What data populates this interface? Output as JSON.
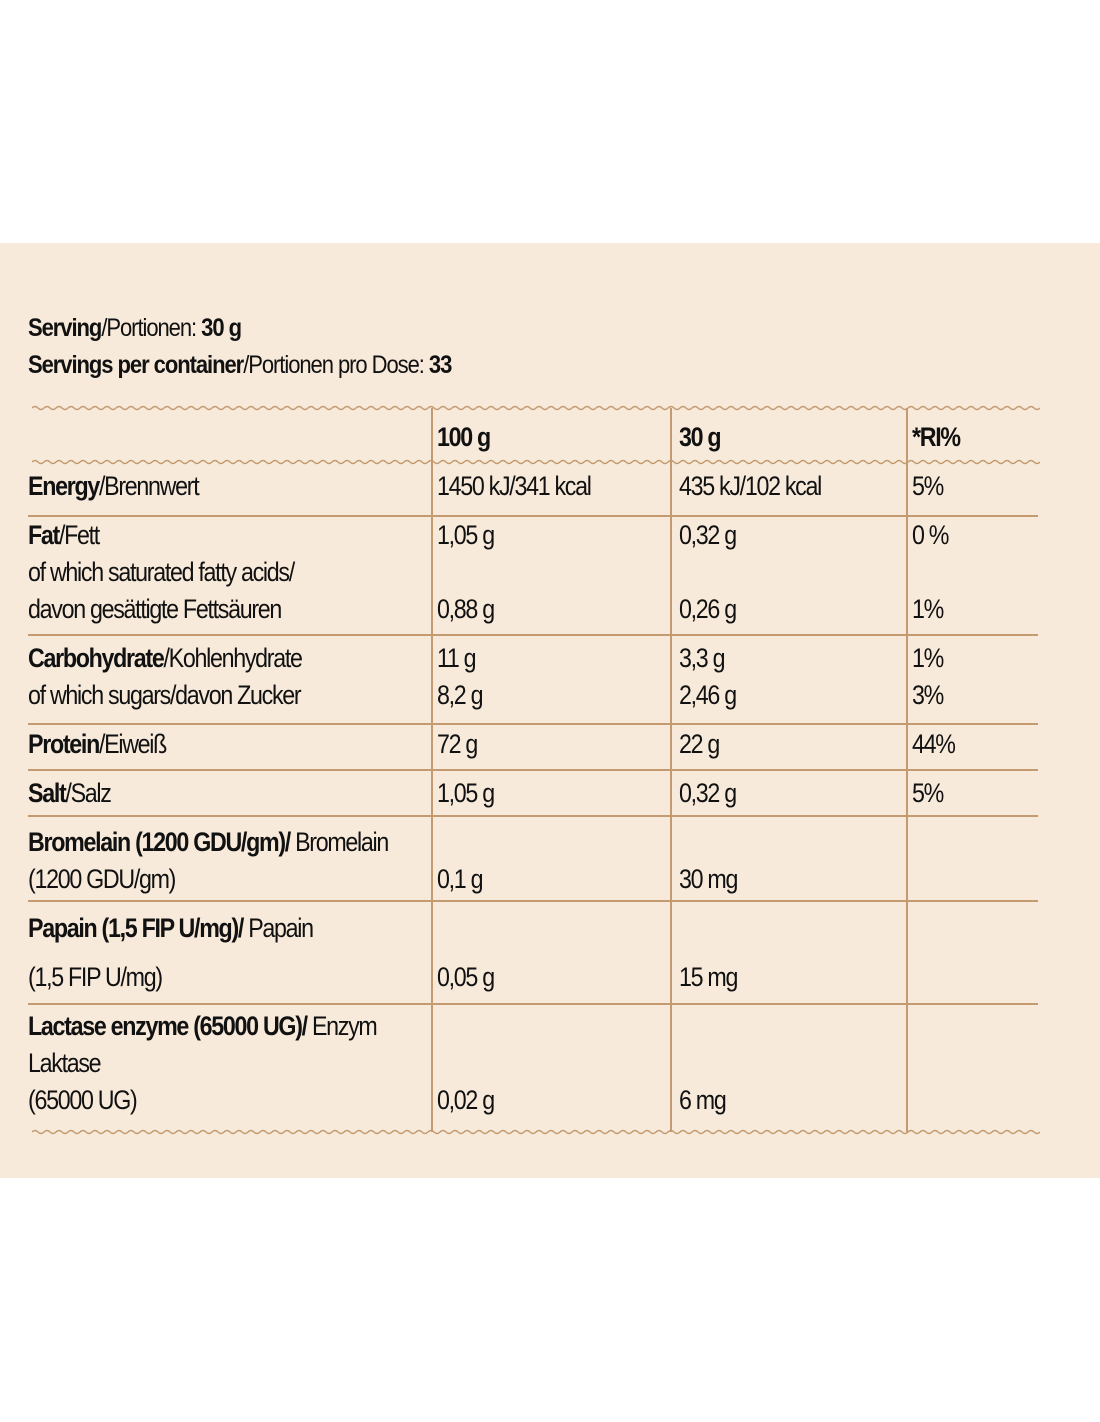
{
  "serving": {
    "line1": {
      "bold1": "Serving",
      "normal": "/Portionen: ",
      "bold2": "30 g"
    },
    "line2": {
      "bold1": "Servings per container",
      "normal": "/Portionen pro Dose: ",
      "bold2": "33"
    }
  },
  "table": {
    "headers": {
      "col100": "100 g",
      "col30": "30 g",
      "ri": "*RI%"
    },
    "rows": {
      "energy": {
        "bold": "Energy",
        "label": "/Brennwert",
        "v100": "1450 kJ/341 kcal",
        "v30": "435 kJ/102 kcal",
        "ri": "5%"
      },
      "fat": {
        "bold": "Fat",
        "label": "/Fett",
        "v100": "1,05 g",
        "v30": "0,32 g",
        "ri": "0 %"
      },
      "saturated": {
        "line1": "of which saturated fatty acids/",
        "line2": "davon gesättigte Fettsäuren",
        "v100": "0,88 g",
        "v30": "0,26 g",
        "ri": "1%"
      },
      "carbohydrate": {
        "bold": "Carbohydrate",
        "label": "/Kohlenhydrate",
        "v100": "11 g",
        "v30": "3,3 g",
        "ri": "1%"
      },
      "sugars": {
        "label": "of which sugars/davon Zucker",
        "v100": "8,2 g",
        "v30": "2,46 g",
        "ri": "3%"
      },
      "protein": {
        "bold": "Protein",
        "label": "/Eiweiß",
        "v100": "72 g",
        "v30": "22 g",
        "ri": "44%"
      },
      "salt": {
        "bold": "Salt",
        "label": "/Salz",
        "v100": "1,05 g",
        "v30": "0,32 g",
        "ri": "5%"
      },
      "bromelain": {
        "bold": "Bromelain (1200 GDU/gm)/",
        "label": " Bromelain",
        "line2": "(1200 GDU/gm)",
        "v100": "0,1 g",
        "v30": "30 mg"
      },
      "papain": {
        "bold": "Papain (1,5 FIP U/mg)/",
        "label": " Papain",
        "line2": "(1,5 FIP U/mg)",
        "v100": "0,05 g",
        "v30": "15 mg"
      },
      "lactase": {
        "bold": "Lactase enzyme (65000 UG)/",
        "label": " Enzym",
        "line2": "Laktase",
        "line3": "(65000 UG)",
        "v100": "0,02 g",
        "v30": "6 mg"
      }
    }
  },
  "colors": {
    "background": "#f8eadb",
    "rule": "#c49a70",
    "text": "#111111"
  }
}
